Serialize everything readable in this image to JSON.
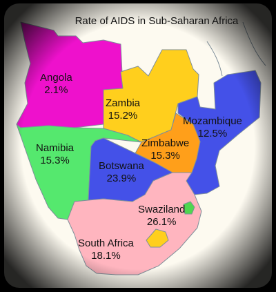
{
  "title": "Rate of AIDS in Sub-Saharan Africa",
  "colors": {
    "background": "#fdfaf0",
    "frame": "#000000",
    "angola": "#ee11cc",
    "zambia": "#ffcf1d",
    "mozambique": "#4451e8",
    "zimbabwe": "#ff9f1a",
    "namibia": "#55e86e",
    "botswana": "#4451e8",
    "swaziland": "#4fd64f",
    "lesotho": "#ffcf1d",
    "south_africa": "#ffb5bf"
  },
  "regions": [
    {
      "key": "angola",
      "name": "Angola",
      "rate": "2.1%"
    },
    {
      "key": "zambia",
      "name": "Zambia",
      "rate": "15.2%"
    },
    {
      "key": "mozambique",
      "name": "Mozambique",
      "rate": "12.5%"
    },
    {
      "key": "zimbabwe",
      "name": "Zimbabwe",
      "rate": "15.3%"
    },
    {
      "key": "namibia",
      "name": "Namibia",
      "rate": "15.3%"
    },
    {
      "key": "botswana",
      "name": "Botswana",
      "rate": "23.9%"
    },
    {
      "key": "swaziland",
      "name": "Swaziland",
      "rate": "26.1%"
    },
    {
      "key": "south_africa",
      "name": "South Africa",
      "rate": "18.1%"
    }
  ]
}
